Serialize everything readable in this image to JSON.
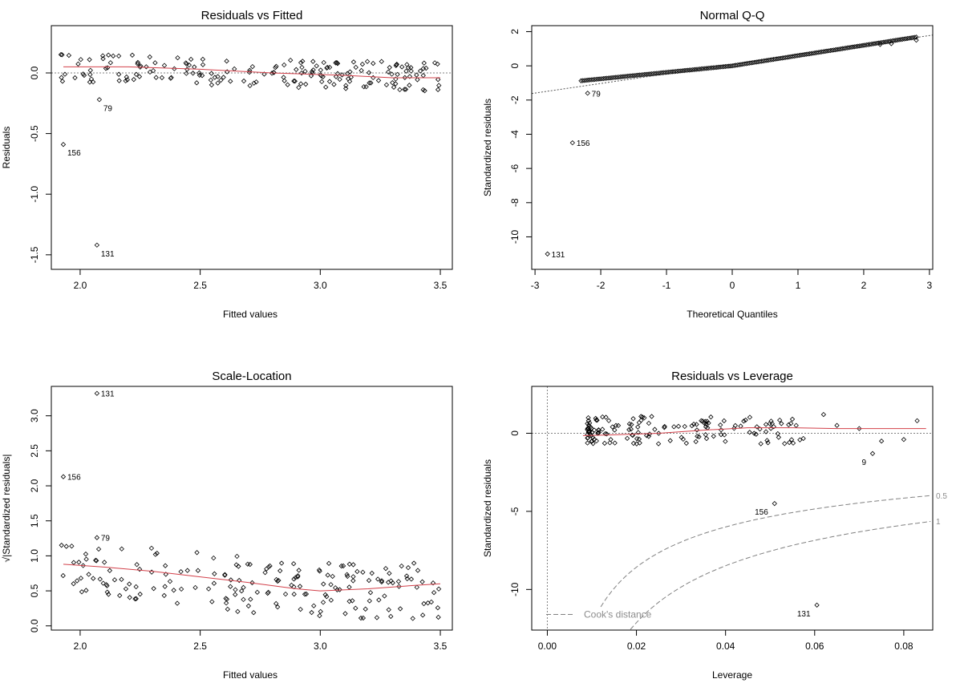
{
  "colors": {
    "smooth": "#d2404a",
    "points": "#000000",
    "reference": "#808080",
    "cook": "#808080"
  },
  "chart_data": [
    {
      "type": "scatter",
      "title": "Residuals vs Fitted",
      "xlabel": "Fitted values",
      "ylabel": "Residuals",
      "xlim": [
        1.88,
        3.55
      ],
      "ylim": [
        -1.62,
        0.39
      ],
      "xticks": [
        2.0,
        2.5,
        3.0,
        3.5
      ],
      "xtick_labels": [
        "2.0",
        "2.5",
        "3.0",
        "3.5"
      ],
      "yticks": [
        0.0,
        -0.5,
        -1.0,
        -1.5
      ],
      "ytick_labels": [
        "0.0",
        "-0.5",
        "-1.0",
        "-1.5"
      ],
      "reference_line": {
        "kind": "hline",
        "value": 0
      },
      "labeled_points": [
        {
          "label": "79",
          "x": 2.08,
          "y": -0.22
        },
        {
          "label": "156",
          "x": 1.93,
          "y": -0.59
        },
        {
          "label": "131",
          "x": 2.07,
          "y": -1.42
        }
      ],
      "smooth": {
        "x": [
          1.93,
          2.2,
          2.5,
          2.8,
          3.1,
          3.3,
          3.5
        ],
        "y": [
          0.05,
          0.05,
          0.03,
          0.0,
          -0.02,
          -0.04,
          -0.04
        ]
      }
    },
    {
      "type": "scatter",
      "title": "Normal Q-Q",
      "xlabel": "Theoretical Quantiles",
      "ylabel": "Standardized residuals",
      "xlim": [
        -3.05,
        3.05
      ],
      "ylim": [
        -11.9,
        2.35
      ],
      "xticks": [
        -3,
        -2,
        -1,
        0,
        1,
        2,
        3
      ],
      "xtick_labels": [
        "-3",
        "-2",
        "-1",
        "0",
        "1",
        "2",
        "3"
      ],
      "yticks": [
        2,
        0,
        -2,
        -4,
        -6,
        -8,
        -10
      ],
      "ytick_labels": [
        "2",
        "0",
        "-2",
        "-4",
        "-6",
        "-8",
        "-10"
      ],
      "reference_line": {
        "kind": "line",
        "x": [
          -3.05,
          3.05
        ],
        "y": [
          -1.62,
          1.8
        ]
      },
      "labeled_points": [
        {
          "label": "79",
          "x": -2.2,
          "y": -1.6
        },
        {
          "label": "156",
          "x": -2.43,
          "y": -4.5
        },
        {
          "label": "131",
          "x": -2.81,
          "y": -11.0
        }
      ]
    },
    {
      "type": "scatter",
      "title": "Scale-Location",
      "xlabel": "Fitted values",
      "ylabel": "√|Standardized residuals|",
      "xlim": [
        1.88,
        3.55
      ],
      "ylim": [
        -0.06,
        3.42
      ],
      "xticks": [
        2.0,
        2.5,
        3.0,
        3.5
      ],
      "xtick_labels": [
        "2.0",
        "2.5",
        "3.0",
        "3.5"
      ],
      "yticks": [
        0.0,
        0.5,
        1.0,
        1.5,
        2.0,
        2.5,
        3.0
      ],
      "ytick_labels": [
        "0.0",
        "0.5",
        "1.0",
        "1.5",
        "2.0",
        "2.5",
        "3.0"
      ],
      "labeled_points": [
        {
          "label": "131",
          "x": 2.07,
          "y": 3.32
        },
        {
          "label": "156",
          "x": 1.93,
          "y": 2.13
        },
        {
          "label": "79",
          "x": 2.07,
          "y": 1.26
        }
      ],
      "smooth": {
        "x": [
          1.93,
          2.1,
          2.3,
          2.5,
          2.7,
          2.9,
          3.0,
          3.2,
          3.4,
          3.5
        ],
        "y": [
          0.88,
          0.84,
          0.78,
          0.7,
          0.62,
          0.53,
          0.5,
          0.53,
          0.58,
          0.6
        ]
      }
    },
    {
      "type": "scatter",
      "title": "Residuals vs Leverage",
      "xlabel": "Leverage",
      "ylabel": "Standardized residuals",
      "xlim": [
        -0.0035,
        0.0865
      ],
      "ylim": [
        -12.6,
        3.0
      ],
      "xticks": [
        0.0,
        0.02,
        0.04,
        0.06,
        0.08
      ],
      "xtick_labels": [
        "0.00",
        "0.02",
        "0.04",
        "0.06",
        "0.08"
      ],
      "yticks": [
        0,
        -5,
        -10
      ],
      "ytick_labels": [
        "0",
        "-5",
        "-10"
      ],
      "reference_line": {
        "kind": "hline",
        "value": 0,
        "vline": 0
      },
      "legend": {
        "label": "Cook's distance",
        "placement": "bottom-left"
      },
      "cook_contours": [
        {
          "level": 0.5,
          "label": "0.5"
        },
        {
          "level": 1,
          "label": "1"
        }
      ],
      "labeled_points": [
        {
          "label": "9",
          "x": 0.073,
          "y": -1.3
        },
        {
          "label": "156",
          "x": 0.051,
          "y": -4.5
        },
        {
          "label": "131",
          "x": 0.0605,
          "y": -11.0
        }
      ],
      "smooth": {
        "x": [
          0.008,
          0.015,
          0.025,
          0.035,
          0.045,
          0.055,
          0.065,
          0.075,
          0.085
        ],
        "y": [
          -0.15,
          -0.1,
          0.0,
          0.2,
          0.35,
          0.35,
          0.3,
          0.3,
          0.3
        ]
      }
    }
  ]
}
